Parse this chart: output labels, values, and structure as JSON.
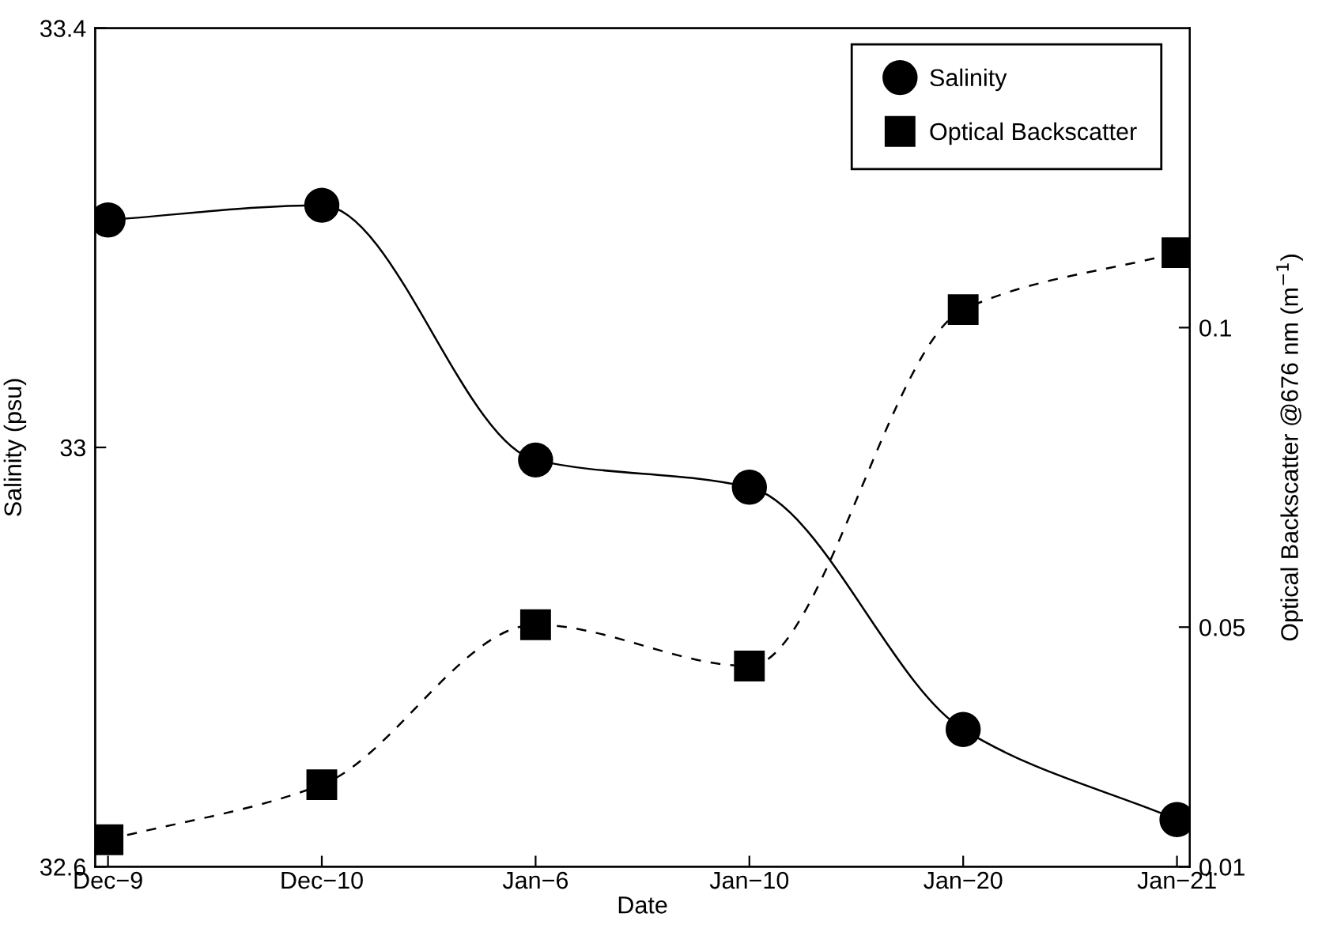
{
  "chart_data": {
    "type": "line",
    "xlabel": "Date",
    "ylabel": "Salinity (psu)",
    "y2label": "Optical Backscatter @676 nm (m$^{−1}$)",
    "categories": [
      "Dec−9",
      "Dec−10",
      "Jan−6",
      "Jan−10",
      "Jan−20",
      "Jan−21"
    ],
    "series": [
      {
        "name": "Salinity",
        "color": "#000000",
        "marker": "circle",
        "line_style": "solid",
        "values": [
          33.217,
          33.231,
          32.988,
          32.962,
          32.731,
          32.645
        ]
      },
      {
        "name": "Optical Backscatter",
        "color": "#000000",
        "marker": "square",
        "line_style": "dashed",
        "axis": "y2",
        "values": [
          0.0145,
          0.0237,
          0.0504,
          0.0435,
          0.103,
          0.1125
        ]
      }
    ],
    "ylim": [
      32.6,
      33.4
    ],
    "yticks": [
      32.6,
      33,
      33.4
    ],
    "y2lim": [
      0.01,
      0.15
    ],
    "y2ticks": [
      0.01,
      0.05,
      0.1
    ],
    "grid": false,
    "legend": "top right"
  }
}
